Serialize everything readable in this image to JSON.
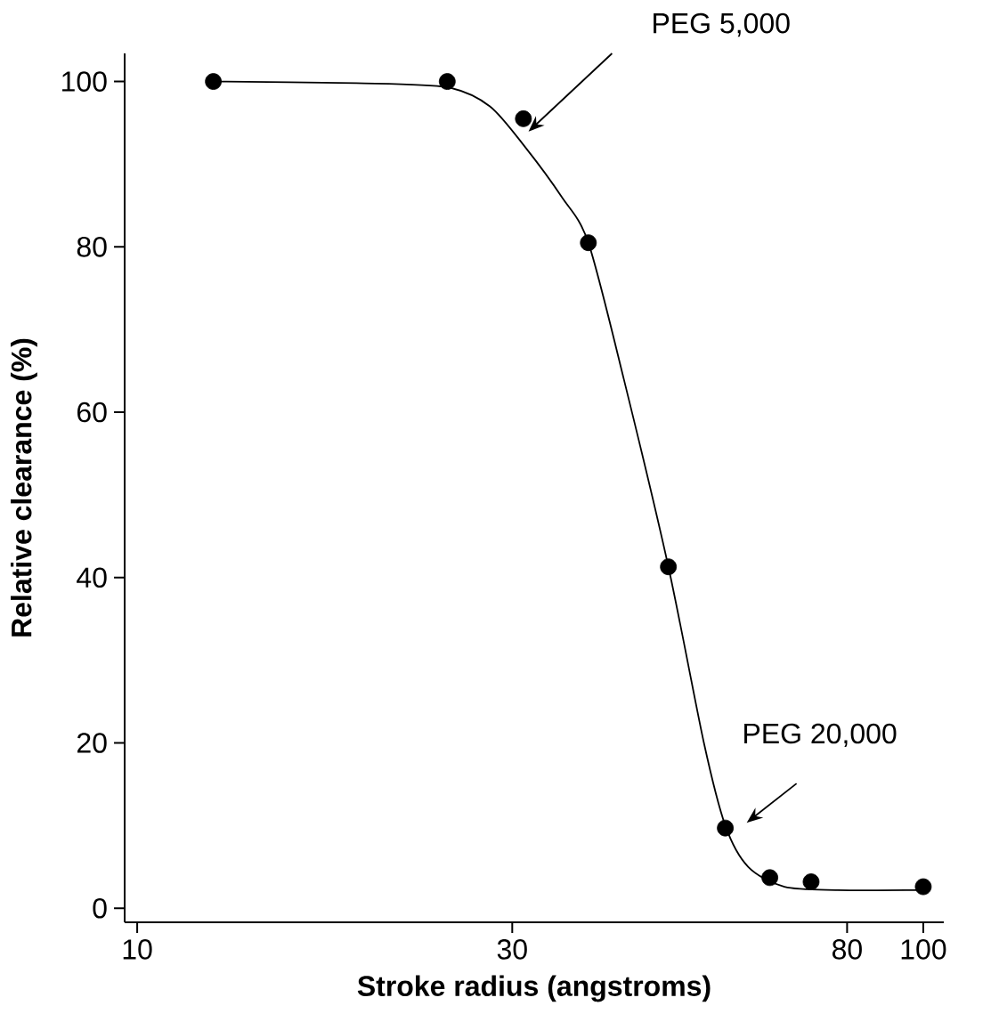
{
  "chart_data": {
    "type": "scatter",
    "xlabel": "Stroke radius (angstroms)",
    "ylabel": "Relative clearance (%)",
    "log": "x",
    "xlim": [
      9.64,
      106.2
    ],
    "xticks": [
      10,
      30,
      80,
      100
    ],
    "ylim": [
      -1.7,
      103.4
    ],
    "yticks": [
      0,
      20,
      40,
      60,
      80,
      100
    ],
    "series": [
      {
        "type": "scatter",
        "marker": "circle",
        "color": "#000000",
        "x": [
          12.5,
          24.8,
          31.0,
          37.5,
          47.4,
          56.0,
          63.8,
          72.0,
          100
        ],
        "values": [
          100,
          100,
          95.5,
          80.5,
          41.3,
          9.7,
          3.7,
          3.2,
          2.6
        ]
      },
      {
        "type": "line",
        "marker": "none",
        "color": "#000000",
        "x": [
          12.5,
          19.0,
          24.8,
          28.1,
          31.2,
          34.7,
          37.5,
          41.6,
          47.4,
          52.6,
          56.0,
          59.9,
          66.6,
          77.8,
          100
        ],
        "values": [
          100,
          99.8,
          99.3,
          97,
          92,
          86,
          80.5,
          64,
          41.3,
          20,
          10,
          5,
          2.6,
          2.2,
          2.2
        ]
      }
    ],
    "annotations": [
      "PEG 5,000",
      {
        "text": "PEG 20,000",
        "x": 56.0,
        "y": 9.7
      }
    ]
  }
}
